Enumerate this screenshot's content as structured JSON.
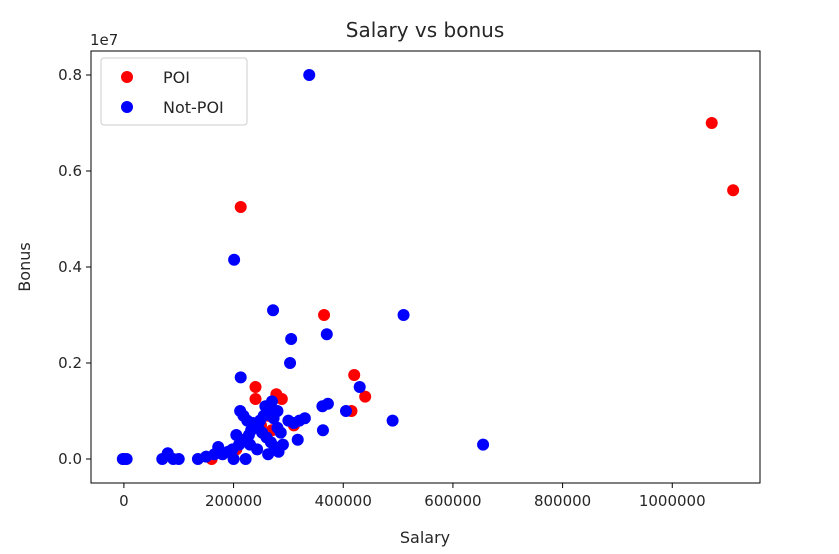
{
  "chart_data": {
    "type": "scatter",
    "title": "Salary vs bonus",
    "xlabel": "Salary",
    "ylabel": "Bonus",
    "y_offset_label": "1e7",
    "xlim": [
      -60000,
      1160000
    ],
    "ylim": [
      -0.05,
      0.85
    ],
    "x_ticks": [
      0,
      200000,
      400000,
      600000,
      800000,
      1000000
    ],
    "x_tick_labels": [
      "0",
      "200000",
      "400000",
      "600000",
      "800000",
      "1000000"
    ],
    "y_ticks": [
      0.0,
      0.2,
      0.4,
      0.6,
      0.8
    ],
    "y_tick_labels": [
      "0.0",
      "0.2",
      "0.4",
      "0.6",
      "0.8"
    ],
    "grid": false,
    "legend_position": "top-left",
    "series": [
      {
        "name": "POI",
        "color": "#ff0000",
        "points": [
          [
            1072000,
            0.7
          ],
          [
            1111000,
            0.56
          ],
          [
            213000,
            0.525
          ],
          [
            365000,
            0.3
          ],
          [
            420000,
            0.175
          ],
          [
            440000,
            0.13
          ],
          [
            240000,
            0.15
          ],
          [
            278000,
            0.135
          ],
          [
            288000,
            0.125
          ],
          [
            240000,
            0.125
          ],
          [
            415000,
            0.1
          ],
          [
            262000,
            0.09
          ],
          [
            250000,
            0.07
          ],
          [
            310000,
            0.07
          ],
          [
            215000,
            0.04
          ],
          [
            160000,
            0.0
          ],
          [
            205000,
            0.02
          ],
          [
            258000,
            0.05
          ],
          [
            270000,
            0.06
          ]
        ]
      },
      {
        "name": "Not-POI",
        "color": "#0000ff",
        "points": [
          [
            338000,
            0.8
          ],
          [
            201000,
            0.415
          ],
          [
            272000,
            0.31
          ],
          [
            510000,
            0.3
          ],
          [
            305000,
            0.25
          ],
          [
            370000,
            0.26
          ],
          [
            303000,
            0.2
          ],
          [
            213000,
            0.17
          ],
          [
            430000,
            0.15
          ],
          [
            372000,
            0.115
          ],
          [
            362000,
            0.11
          ],
          [
            405000,
            0.1
          ],
          [
            490000,
            0.08
          ],
          [
            655000,
            0.03
          ],
          [
            363000,
            0.06
          ],
          [
            317000,
            0.04
          ],
          [
            330000,
            0.085
          ],
          [
            290000,
            0.03
          ],
          [
            270000,
            0.12
          ],
          [
            265000,
            0.105
          ],
          [
            255000,
            0.09
          ],
          [
            248000,
            0.08
          ],
          [
            240000,
            0.07
          ],
          [
            232000,
            0.06
          ],
          [
            228000,
            0.05
          ],
          [
            220000,
            0.04
          ],
          [
            210000,
            0.03
          ],
          [
            205000,
            0.05
          ],
          [
            198000,
            0.02
          ],
          [
            190000,
            0.015
          ],
          [
            180000,
            0.01
          ],
          [
            172000,
            0.025
          ],
          [
            165000,
            0.01
          ],
          [
            150000,
            0.005
          ],
          [
            135000,
            0.0
          ],
          [
            100000,
            0.0
          ],
          [
            90000,
            0.0
          ],
          [
            80000,
            0.012
          ],
          [
            70000,
            0.0
          ],
          [
            5000,
            0.0
          ],
          [
            0,
            0.0
          ],
          [
            -2000,
            0.0
          ],
          [
            212000,
            0.1
          ],
          [
            218000,
            0.09
          ],
          [
            225000,
            0.08
          ],
          [
            235000,
            0.075
          ],
          [
            245000,
            0.065
          ],
          [
            252000,
            0.055
          ],
          [
            260000,
            0.045
          ],
          [
            268000,
            0.035
          ],
          [
            275000,
            0.025
          ],
          [
            282000,
            0.015
          ],
          [
            263000,
            0.01
          ],
          [
            243000,
            0.02
          ],
          [
            222000,
            0.0
          ],
          [
            300000,
            0.08
          ],
          [
            310000,
            0.075
          ],
          [
            320000,
            0.08
          ],
          [
            280000,
            0.1
          ],
          [
            258000,
            0.11
          ],
          [
            273000,
            0.085
          ],
          [
            286000,
            0.055
          ],
          [
            230000,
            0.03
          ],
          [
            200000,
            0.0
          ],
          [
            280000,
            0.065
          ]
        ]
      }
    ]
  }
}
